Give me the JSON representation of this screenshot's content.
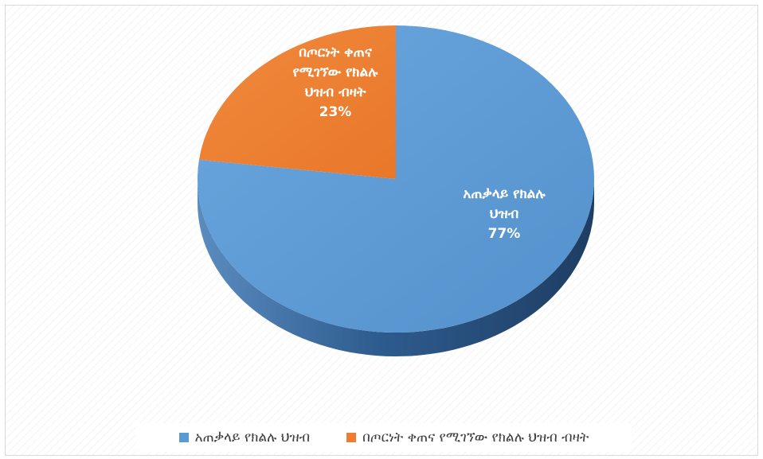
{
  "chart_data": {
    "type": "pie",
    "categories": [
      "አጠቃላይ የክልሉ ህዝብ",
      "በጦርነት ቀጠና የሚገኘው የክልሉ ህዝብ ብዛት"
    ],
    "values": [
      77,
      23
    ],
    "value_labels": [
      "77%",
      "23%"
    ],
    "colors": [
      "#5b9bd5",
      "#ed7d31"
    ],
    "label_lines": [
      [
        "አጠቃላይ የክልሉ",
        "ህዝብ"
      ],
      [
        "በጦርነት ቀጠና",
        "የሚገኘው የክልሉ",
        "ህዝብ ብዛት"
      ]
    ],
    "legend_position": "bottom",
    "style": "3d",
    "title": ""
  }
}
